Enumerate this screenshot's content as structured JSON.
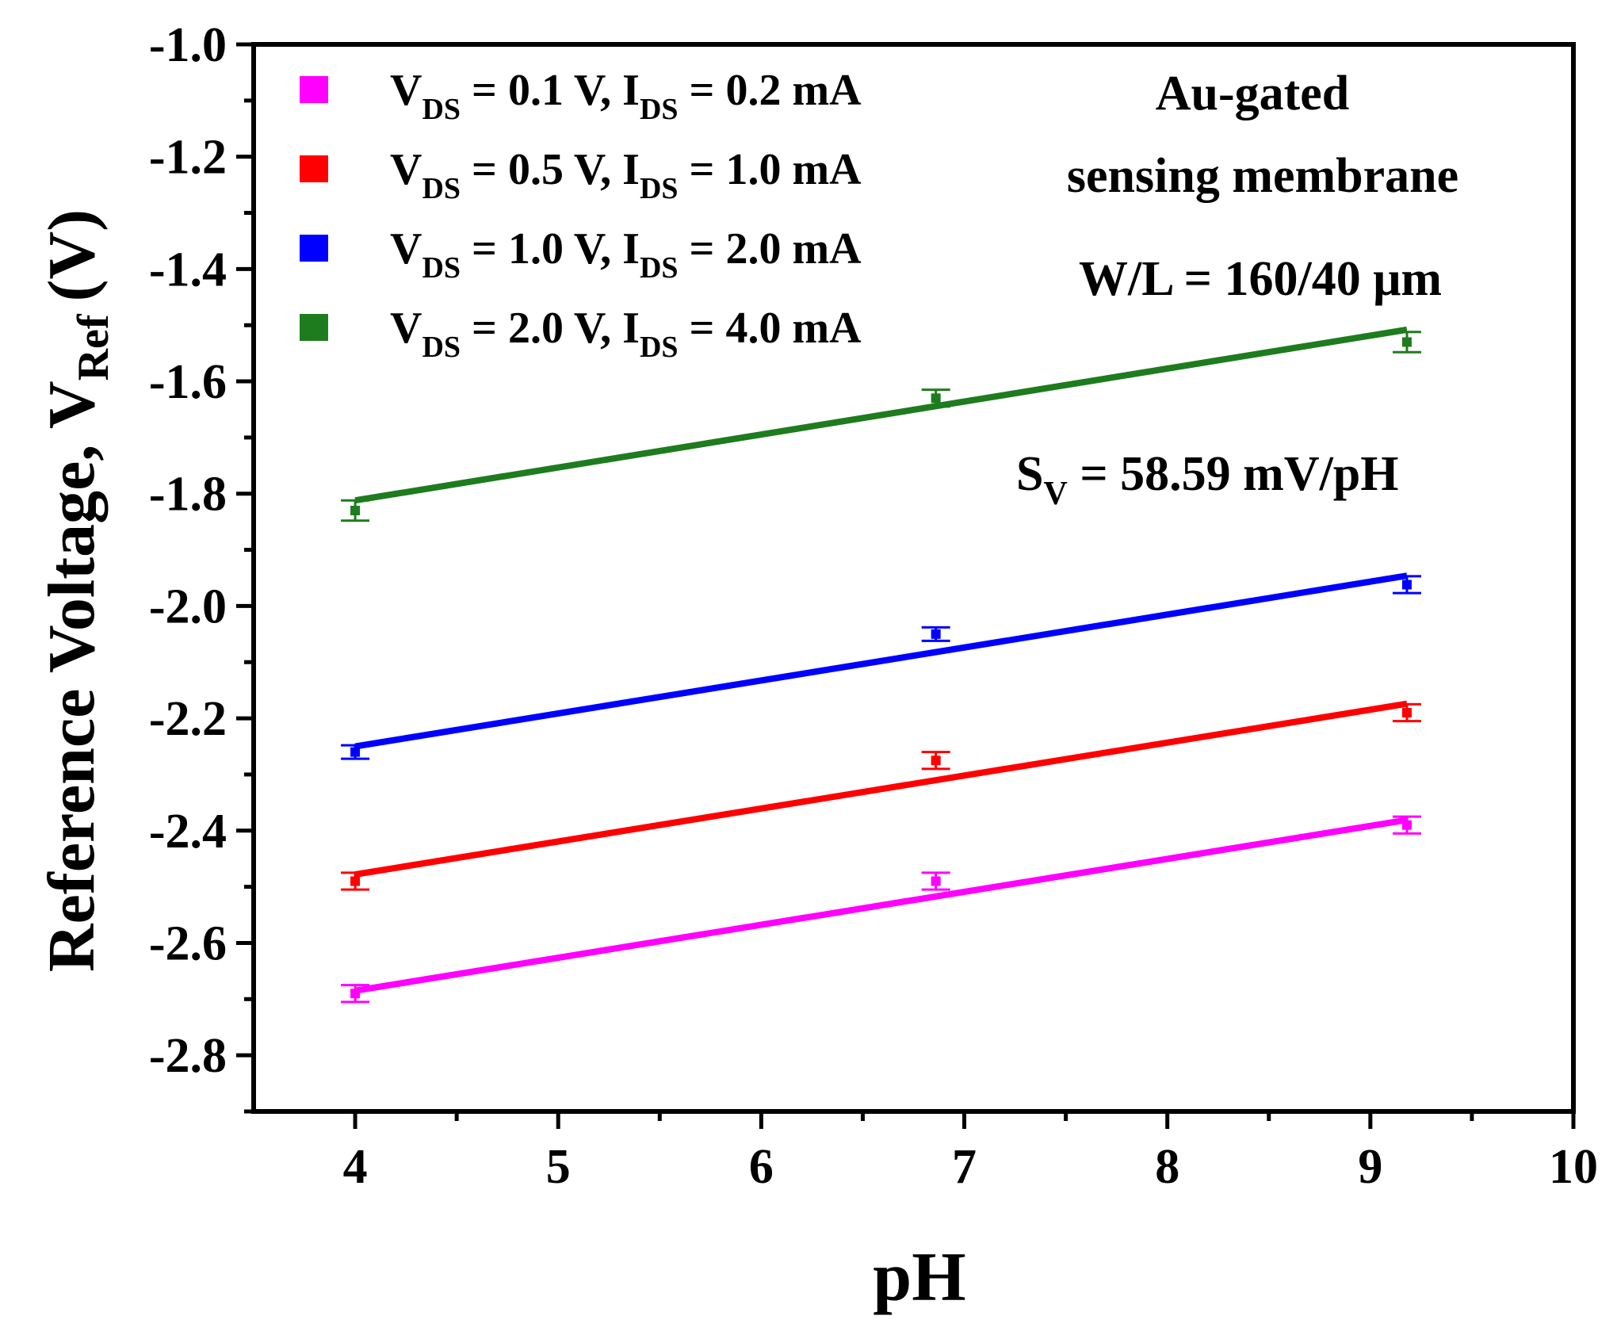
{
  "chart_data": {
    "type": "scatter",
    "xlabel": "pH",
    "ylabel": {
      "main": "Reference Voltage, V",
      "sub": "Ref",
      "unit": "(V)"
    },
    "xlim": [
      3.5,
      10
    ],
    "ylim": [
      -2.9,
      -1.0
    ],
    "x_ticks": [
      4,
      5,
      6,
      7,
      8,
      9,
      10
    ],
    "x_tick_labels": [
      "4",
      "5",
      "6",
      "7",
      "8",
      "9",
      "10"
    ],
    "x_minor_ticks": [
      4.5,
      5.5,
      6.5,
      7.5,
      8.5,
      9.5
    ],
    "y_ticks": [
      -2.8,
      -2.6,
      -2.4,
      -2.2,
      -2.0,
      -1.8,
      -1.6,
      -1.4,
      -1.2,
      -1.0
    ],
    "y_tick_labels": [
      "-2.8",
      "-2.6",
      "-2.4",
      "-2.2",
      "-2.0",
      "-1.8",
      "-1.6",
      "-1.4",
      "-1.2",
      "-1.0"
    ],
    "y_minor_ticks": [
      -2.9,
      -2.7,
      -2.5,
      -2.3,
      -2.1,
      -1.9,
      -1.7,
      -1.5,
      -1.3,
      -1.1
    ],
    "grid": false,
    "legend_position": "top-left",
    "series": [
      {
        "name": "VDS = 0.1 V, IDS = 0.2 mA",
        "label_parts": [
          "V",
          "DS",
          " = 0.1 V, I",
          "DS",
          " = 0.2 mA"
        ],
        "color": "#ff00ff",
        "x": [
          4.0,
          6.86,
          9.18
        ],
        "y": [
          -2.69,
          -2.49,
          -2.39
        ],
        "err": [
          0.015,
          0.015,
          0.015
        ],
        "fit": {
          "x": [
            4.0,
            9.18
          ],
          "y": [
            -2.685,
            -2.381
          ]
        }
      },
      {
        "name": "VDS = 0.5 V, IDS = 1.0 mA",
        "label_parts": [
          "V",
          "DS",
          " = 0.5 V, I",
          "DS",
          " = 1.0 mA"
        ],
        "color": "#ff0000",
        "x": [
          4.0,
          6.86,
          9.18
        ],
        "y": [
          -2.49,
          -2.275,
          -2.19
        ],
        "err": [
          0.015,
          0.015,
          0.015
        ],
        "fit": {
          "x": [
            4.0,
            9.18
          ],
          "y": [
            -2.478,
            -2.174
          ]
        }
      },
      {
        "name": "VDS = 1.0 V, IDS = 2.0 mA",
        "label_parts": [
          "V",
          "DS",
          " = 1.0 V, I",
          "DS",
          " = 2.0 mA"
        ],
        "color": "#0000ff",
        "x": [
          4.0,
          6.86,
          9.18
        ],
        "y": [
          -2.26,
          -2.05,
          -1.962
        ],
        "err": [
          0.012,
          0.012,
          0.015
        ],
        "fit": {
          "x": [
            4.0,
            9.18
          ],
          "y": [
            -2.25,
            -1.946
          ]
        }
      },
      {
        "name": "VDS = 2.0 V, IDS = 4.0 mA",
        "label_parts": [
          "V",
          "DS",
          " = 2.0 V, I",
          "DS",
          " = 4.0 mA"
        ],
        "color": "#1e7c1e",
        "x": [
          4.0,
          6.86,
          9.18
        ],
        "y": [
          -1.83,
          -1.63,
          -1.53
        ],
        "err": [
          0.018,
          0.015,
          0.018
        ],
        "fit": {
          "x": [
            4.0,
            9.18
          ],
          "y": [
            -1.812,
            -1.508
          ]
        }
      }
    ],
    "annotations": {
      "title_line1": "Au-gated",
      "title_line2": "sensing membrane",
      "geometry": "W/L = 160/40 μm",
      "sensitivity_prefix": "S",
      "sensitivity_sub": "V",
      "sensitivity_value": " = 58.59 mV/pH"
    }
  }
}
